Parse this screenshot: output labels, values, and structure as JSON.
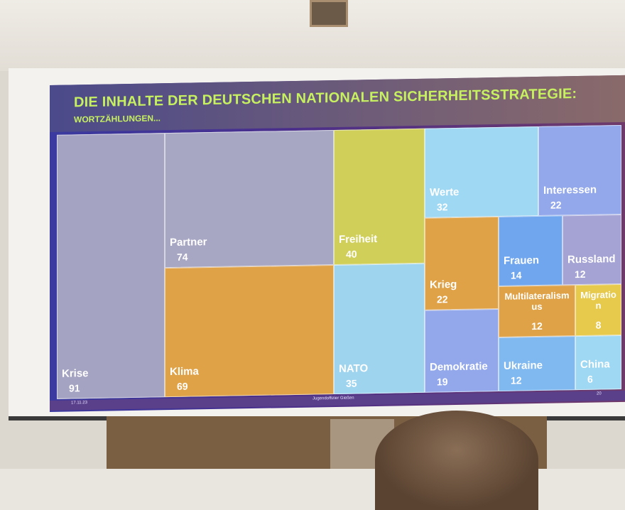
{
  "slide": {
    "title": "DIE INHALTE DER DEUTSCHEN NATIONALEN SICHERHEITSSTRATEGIE:",
    "subtitle": "WORTZÄHLUNGEN...",
    "footer": {
      "date": "17.11.23",
      "center": "Jugendoffizier Gießen",
      "page": "20"
    }
  },
  "chart_data": {
    "type": "treemap",
    "title": "DIE INHALTE DER DEUTSCHEN NATIONALEN SICHERHEITSSTRATEGIE:",
    "subtitle": "WORTZÄHLUNGEN...",
    "items": [
      {
        "label": "Krise",
        "value": 91,
        "color": "#a5a3c2"
      },
      {
        "label": "Partner",
        "value": 74,
        "color": "#a7a6c3"
      },
      {
        "label": "Klima",
        "value": 69,
        "color": "#e0a247"
      },
      {
        "label": "Freiheit",
        "value": 40,
        "color": "#cfcf5a"
      },
      {
        "label": "NATO",
        "value": 35,
        "color": "#9fd4ef"
      },
      {
        "label": "Werte",
        "value": 32,
        "color": "#9fd8f2"
      },
      {
        "label": "Interessen",
        "value": 22,
        "color": "#93a8ea"
      },
      {
        "label": "Krieg",
        "value": 22,
        "color": "#e0a247"
      },
      {
        "label": "Demokratie",
        "value": 19,
        "color": "#93a8ea"
      },
      {
        "label": "Frauen",
        "value": 14,
        "color": "#6fa6ee"
      },
      {
        "label": "Russland",
        "value": 12,
        "color": "#a5a3d4"
      },
      {
        "label": "Multilateralismus",
        "value": 12,
        "color": "#e0a247"
      },
      {
        "label": "Ukraine",
        "value": 12,
        "color": "#80b8f0"
      },
      {
        "label": "Migration",
        "value": 8,
        "color": "#e7c94c"
      },
      {
        "label": "China",
        "value": 6,
        "color": "#9fd8f2"
      }
    ]
  }
}
